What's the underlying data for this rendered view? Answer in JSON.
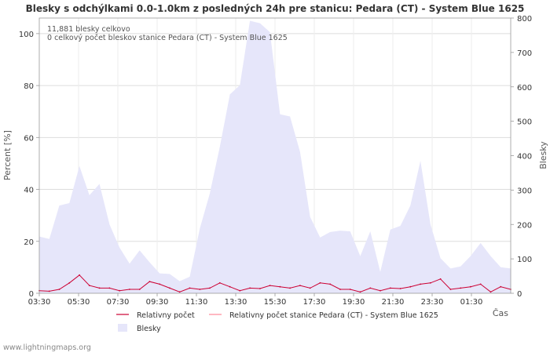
{
  "chart_data": {
    "type": "area",
    "title": "Blesky s odchýlkami 0.0-1.0km z posledných 24h pre stanicu: Pedara (CT) - System Blue 1625",
    "ylabel_left": "Percent   [%]",
    "ylabel_right": "Blesky",
    "xlabel": "Čas",
    "ylim_left": [
      0,
      106
    ],
    "ylim_right": [
      0,
      800
    ],
    "yticks_left": [
      0,
      20,
      40,
      60,
      80,
      100
    ],
    "yticks_right": [
      0,
      100,
      200,
      300,
      400,
      500,
      600,
      700,
      800
    ],
    "x_tick_labels": [
      "03:30",
      "05:30",
      "07:30",
      "09:30",
      "11:30",
      "13:30",
      "15:30",
      "17:30",
      "19:30",
      "21:30",
      "23:30",
      "01:30"
    ],
    "annotations": [
      "11,881 blesky celkovo",
      "0 celkový počet bleskov stanice Pedara (CT) - System Blue 1625"
    ],
    "legend": [
      {
        "label": "Relativny počet",
        "color": "#cc0033"
      },
      {
        "label": "Relativny počet stanice Pedara (CT) - System Blue 1625",
        "color": "#ff8899"
      },
      {
        "label": "Blesky",
        "color": "#e6e6fa"
      }
    ],
    "series": [
      {
        "name": "Blesky",
        "axis": "right",
        "color": "#e6e6fa",
        "values": [
          165,
          158,
          255,
          262,
          370,
          285,
          318,
          200,
          133,
          86,
          125,
          90,
          58,
          56,
          35,
          48,
          188,
          290,
          426,
          578,
          605,
          792,
          785,
          759,
          520,
          514,
          411,
          222,
          162,
          178,
          182,
          180,
          108,
          180,
          62,
          185,
          196,
          255,
          385,
          200,
          102,
          72,
          78,
          108,
          146,
          108,
          76,
          72
        ]
      },
      {
        "name": "Relativny počet",
        "axis": "left",
        "color": "#cc0033",
        "values": [
          1,
          0.8,
          1.5,
          4,
          7,
          3,
          2,
          2,
          1,
          1.5,
          1.5,
          4.5,
          3.5,
          2,
          0.5,
          2,
          1.5,
          2,
          4,
          2.5,
          1,
          2,
          1.8,
          3,
          2.5,
          2,
          3,
          2,
          4,
          3.5,
          1.5,
          1.5,
          0.5,
          2,
          1,
          2,
          1.8,
          2.5,
          3.5,
          4,
          5.5,
          1.5,
          2,
          2.5,
          3.5,
          0.5,
          2.5,
          1.5
        ]
      },
      {
        "name": "Relativny počet stanice Pedara (CT) - System Blue 1625",
        "axis": "left",
        "color": "#ff8899",
        "values": []
      }
    ]
  },
  "footer": {
    "watermark": "www.lightningmaps.org"
  }
}
